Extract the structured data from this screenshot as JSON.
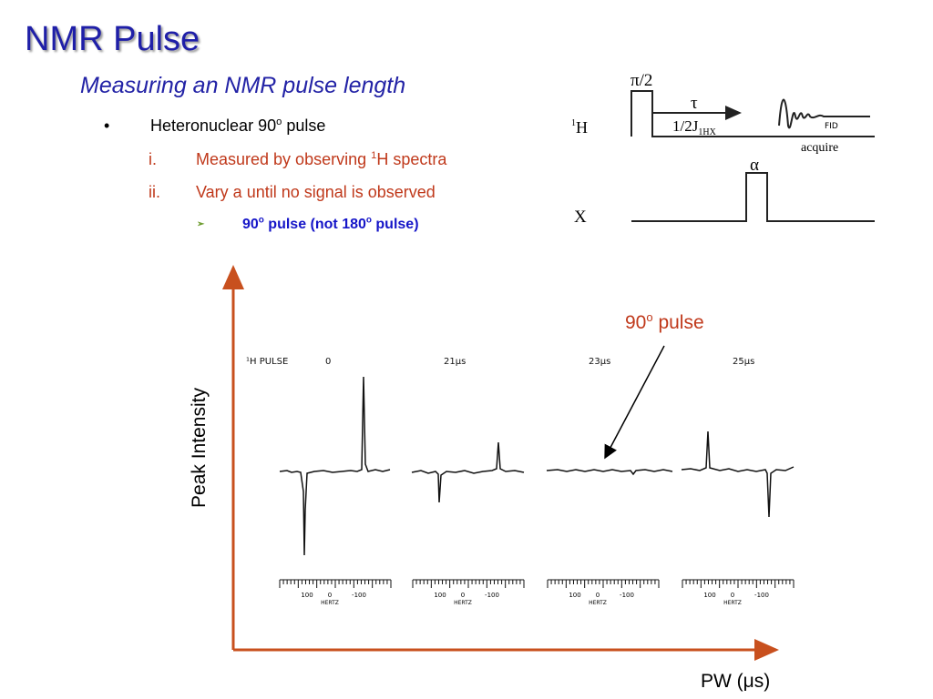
{
  "slide": {
    "title": "NMR Pulse",
    "subtitle": "Measuring an NMR pulse length"
  },
  "bullets": {
    "level1": {
      "marker": "•",
      "text_pre": "Heteronuclear 90",
      "sup": "o",
      "text_post": " pulse"
    },
    "sub1": {
      "num": "i.",
      "text_pre": "Measured by observing ",
      "sup": "1",
      "text_post": "H spectra"
    },
    "sub2": {
      "num": "ii.",
      "text": "Vary a until no signal is observed"
    },
    "level3": {
      "marker": "➢",
      "text_a": "90",
      "sup_a": "o",
      "text_b": " pulse (not 180",
      "sup_b": "o",
      "text_c": " pulse)"
    }
  },
  "pulse_sequence": {
    "h_channel_label": "H",
    "h_channel_sup": "1",
    "x_channel_label": "X",
    "pulse_label": "π/2",
    "tau_label": "τ",
    "delay_label": "1/2J",
    "delay_sub": "1HX",
    "fid_label": "FID",
    "acquire_label": "acquire",
    "alpha_label": "α"
  },
  "figure": {
    "y_axis_label": "Peak Intensity",
    "x_axis_label_pre": "PW (",
    "x_axis_mu": "μ",
    "x_axis_label_post": "s)",
    "callout_pre": "90",
    "callout_sup": "o",
    "callout_post": " pulse",
    "spectra_header": "¹H PULSE",
    "spectra": [
      {
        "pulse": "0"
      },
      {
        "pulse": "21μs"
      },
      {
        "pulse": "23μs"
      },
      {
        "pulse": "25μs"
      }
    ],
    "scale_ticks": [
      "100",
      "0",
      "-100"
    ],
    "scale_unit": "HERTZ"
  },
  "colors": {
    "title": "#1f1fa8",
    "subtitle": "#2323a6",
    "sub_bullets": "#c0391b",
    "level3": "#1515c8",
    "axes": "#c8501e"
  }
}
